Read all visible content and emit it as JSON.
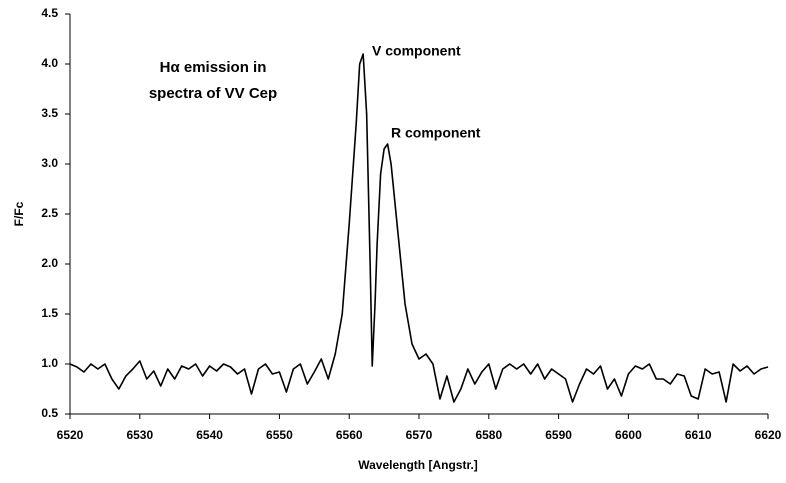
{
  "chart_data": {
    "type": "line",
    "annotations": [
      "Hα emission in",
      "spectra of VV Cep",
      "V component",
      "R component"
    ],
    "xlabel": "Wavelength [Angstr.]",
    "ylabel": "F/Fc",
    "x": [
      6520,
      6521,
      6522,
      6523,
      6524,
      6525,
      6526,
      6527,
      6528,
      6529,
      6530,
      6531,
      6532,
      6533,
      6534,
      6535,
      6536,
      6537,
      6538,
      6539,
      6540,
      6541,
      6542,
      6543,
      6544,
      6545,
      6546,
      6547,
      6548,
      6549,
      6550,
      6551,
      6552,
      6553,
      6554,
      6555,
      6556,
      6557,
      6558,
      6559,
      6560,
      6561,
      6561.5,
      6562,
      6562.5,
      6563,
      6563.3,
      6563.7,
      6564,
      6564.5,
      6565,
      6565.5,
      6566,
      6567,
      6568,
      6569,
      6570,
      6571,
      6572,
      6573,
      6574,
      6575,
      6576,
      6577,
      6578,
      6579,
      6580,
      6581,
      6582,
      6583,
      6584,
      6585,
      6586,
      6587,
      6588,
      6589,
      6590,
      6591,
      6592,
      6593,
      6594,
      6595,
      6596,
      6597,
      6598,
      6599,
      6600,
      6601,
      6602,
      6603,
      6604,
      6605,
      6606,
      6607,
      6608,
      6609,
      6610,
      6611,
      6612,
      6613,
      6614,
      6615,
      6616,
      6617,
      6618,
      6619,
      6620
    ],
    "values": [
      1.0,
      0.97,
      0.92,
      1.0,
      0.95,
      1.0,
      0.85,
      0.75,
      0.88,
      0.95,
      1.03,
      0.85,
      0.93,
      0.78,
      0.95,
      0.85,
      0.98,
      0.95,
      1.0,
      0.88,
      0.98,
      0.93,
      1.0,
      0.97,
      0.9,
      0.95,
      0.7,
      0.95,
      1.0,
      0.9,
      0.92,
      0.72,
      0.95,
      1.0,
      0.8,
      0.92,
      1.05,
      0.85,
      1.1,
      1.5,
      2.4,
      3.4,
      4.0,
      4.1,
      3.5,
      2.0,
      0.98,
      1.6,
      2.2,
      2.9,
      3.15,
      3.2,
      3.0,
      2.3,
      1.6,
      1.2,
      1.05,
      1.1,
      1.0,
      0.65,
      0.88,
      0.62,
      0.75,
      0.95,
      0.8,
      0.92,
      1.0,
      0.75,
      0.95,
      1.0,
      0.95,
      1.0,
      0.9,
      1.0,
      0.85,
      0.95,
      0.9,
      0.85,
      0.62,
      0.8,
      0.95,
      0.9,
      0.98,
      0.75,
      0.85,
      0.68,
      0.9,
      0.98,
      0.95,
      1.0,
      0.85,
      0.85,
      0.8,
      0.9,
      0.88,
      0.68,
      0.65,
      0.95,
      0.9,
      0.92,
      0.62,
      1.0,
      0.93,
      0.98,
      0.9,
      0.95,
      0.97
    ],
    "color": "#000000",
    "xlim": [
      6520,
      6620
    ],
    "xticks": [
      6520,
      6530,
      6540,
      6550,
      6560,
      6570,
      6580,
      6590,
      6600,
      6610,
      6620
    ],
    "ylim": [
      0.5,
      4.5
    ],
    "yticks": [
      0.5,
      {
        "value": 1,
        "label": "1.0"
      },
      1.5,
      {
        "value": 2,
        "label": "2.0"
      },
      2.5,
      {
        "value": 3,
        "label": "3.0"
      },
      3.5,
      {
        "value": 4,
        "label": "4.0"
      },
      4.5
    ],
    "grid": false
  }
}
